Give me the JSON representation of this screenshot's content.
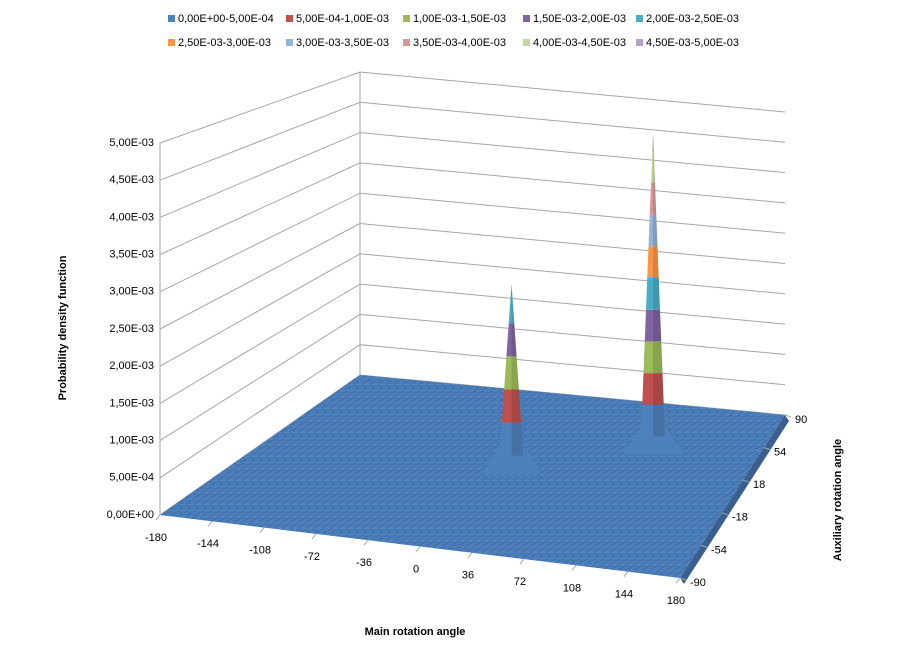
{
  "chart_data": {
    "type": "surface",
    "xlabel": "Main rotation angle",
    "ylabel": "Auxiliary rotation angle",
    "zlabel": "Probability density function",
    "xlim": [
      -180,
      180
    ],
    "xticks": [
      -180,
      -144,
      -108,
      -72,
      -36,
      0,
      36,
      72,
      108,
      144,
      180
    ],
    "ylim": [
      -90,
      90
    ],
    "yticks": [
      -90,
      -54,
      -18,
      18,
      54,
      90
    ],
    "zlim": [
      0,
      0.005
    ],
    "zticks": [
      {
        "value": 0,
        "label": "0,00E+00"
      },
      {
        "value": 0.0005,
        "label": "5,00E-04"
      },
      {
        "value": 0.001,
        "label": "1,00E-03"
      },
      {
        "value": 0.0015,
        "label": "1,50E-03"
      },
      {
        "value": 0.002,
        "label": "2,00E-03"
      },
      {
        "value": 0.0025,
        "label": "2,50E-03"
      },
      {
        "value": 0.003,
        "label": "3,00E-03"
      },
      {
        "value": 0.0035,
        "label": "3,50E-03"
      },
      {
        "value": 0.004,
        "label": "4,00E-03"
      },
      {
        "value": 0.0045,
        "label": "4,50E-03"
      },
      {
        "value": 0.005,
        "label": "5,00E-03"
      }
    ],
    "bands": [
      {
        "name": "0,00E+00-5,00E-04",
        "color": "#4f81bd"
      },
      {
        "name": "5,00E-04-1,00E-03",
        "color": "#c0504d"
      },
      {
        "name": "1,00E-03-1,50E-03",
        "color": "#9bbb59"
      },
      {
        "name": "1,50E-03-2,00E-03",
        "color": "#8064a2"
      },
      {
        "name": "2,00E-03-2,50E-03",
        "color": "#4bacc6"
      },
      {
        "name": "2,50E-03-3,00E-03",
        "color": "#f79646"
      },
      {
        "name": "3,00E-03-3,50E-03",
        "color": "#95b3d7"
      },
      {
        "name": "3,50E-03-4,00E-03",
        "color": "#d99694"
      },
      {
        "name": "4,00E-03-4,50E-03",
        "color": "#c3d69b"
      },
      {
        "name": "4,50E-03-5,00E-03",
        "color": "#b3a2c7"
      }
    ],
    "peaks": {
      "x": [
        0,
        90
      ],
      "y": [
        18,
        54
      ],
      "z": [
        0.0026,
        0.0048
      ]
    },
    "grid": true
  }
}
